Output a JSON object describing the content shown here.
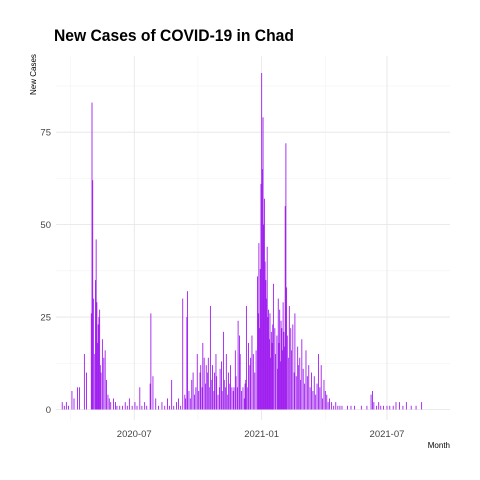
{
  "chart_data": {
    "type": "bar",
    "title": "New Cases of COVID-19 in Chad",
    "xlabel": "Month",
    "ylabel": "New Cases",
    "bar_color": "#A020F0",
    "grid": true,
    "legend": "none",
    "xlim": [
      "2020-03-10",
      "2021-09-30"
    ],
    "ylim": [
      0,
      91
    ],
    "x_ticks": [
      {
        "date": "2020-07-01",
        "label": "2020-07"
      },
      {
        "date": "2021-01-01",
        "label": "2021-01"
      },
      {
        "date": "2021-07-01",
        "label": "2021-07"
      }
    ],
    "y_ticks": [
      0,
      25,
      50,
      75
    ],
    "series": [
      {
        "points": [
          [
            "2020-03-19",
            2
          ],
          [
            "2020-03-22",
            1
          ],
          [
            "2020-03-25",
            2
          ],
          [
            "2020-03-28",
            1
          ],
          [
            "2020-04-02",
            5
          ],
          [
            "2020-04-05",
            3
          ],
          [
            "2020-04-10",
            6
          ],
          [
            "2020-04-13",
            6
          ],
          [
            "2020-04-20",
            15
          ],
          [
            "2020-04-23",
            10
          ],
          [
            "2020-04-30",
            26
          ],
          [
            "2020-05-01",
            83
          ],
          [
            "2020-05-02",
            62
          ],
          [
            "2020-05-03",
            30
          ],
          [
            "2020-05-05",
            15
          ],
          [
            "2020-05-06",
            35
          ],
          [
            "2020-05-07",
            46
          ],
          [
            "2020-05-08",
            29
          ],
          [
            "2020-05-09",
            18
          ],
          [
            "2020-05-10",
            23
          ],
          [
            "2020-05-11",
            25
          ],
          [
            "2020-05-12",
            27
          ],
          [
            "2020-05-13",
            12
          ],
          [
            "2020-05-14",
            10
          ],
          [
            "2020-05-16",
            19
          ],
          [
            "2020-05-18",
            14
          ],
          [
            "2020-05-20",
            16
          ],
          [
            "2020-05-22",
            8
          ],
          [
            "2020-05-24",
            4
          ],
          [
            "2020-05-26",
            3
          ],
          [
            "2020-05-28",
            2
          ],
          [
            "2020-06-01",
            3
          ],
          [
            "2020-06-04",
            2
          ],
          [
            "2020-06-06",
            1
          ],
          [
            "2020-06-10",
            1
          ],
          [
            "2020-06-14",
            1
          ],
          [
            "2020-06-18",
            2
          ],
          [
            "2020-06-21",
            1
          ],
          [
            "2020-06-24",
            3
          ],
          [
            "2020-06-28",
            1
          ],
          [
            "2020-07-02",
            2
          ],
          [
            "2020-07-05",
            1
          ],
          [
            "2020-07-09",
            6
          ],
          [
            "2020-07-12",
            1
          ],
          [
            "2020-07-16",
            2
          ],
          [
            "2020-07-19",
            1
          ],
          [
            "2020-07-24",
            7
          ],
          [
            "2020-07-25",
            26
          ],
          [
            "2020-07-28",
            9
          ],
          [
            "2020-08-01",
            3
          ],
          [
            "2020-08-05",
            1
          ],
          [
            "2020-08-10",
            2
          ],
          [
            "2020-08-14",
            1
          ],
          [
            "2020-08-18",
            3
          ],
          [
            "2020-08-21",
            1
          ],
          [
            "2020-08-24",
            8
          ],
          [
            "2020-08-27",
            1
          ],
          [
            "2020-08-31",
            2
          ],
          [
            "2020-09-03",
            3
          ],
          [
            "2020-09-06",
            1
          ],
          [
            "2020-09-09",
            30
          ],
          [
            "2020-09-12",
            4
          ],
          [
            "2020-09-13",
            3
          ],
          [
            "2020-09-15",
            25
          ],
          [
            "2020-09-16",
            32
          ],
          [
            "2020-09-18",
            5
          ],
          [
            "2020-09-20",
            3
          ],
          [
            "2020-09-22",
            8
          ],
          [
            "2020-09-24",
            10
          ],
          [
            "2020-09-26",
            4
          ],
          [
            "2020-09-28",
            6
          ],
          [
            "2020-09-30",
            15
          ],
          [
            "2020-10-02",
            5
          ],
          [
            "2020-10-04",
            10
          ],
          [
            "2020-10-05",
            12
          ],
          [
            "2020-10-07",
            6
          ],
          [
            "2020-10-08",
            18
          ],
          [
            "2020-10-10",
            14
          ],
          [
            "2020-10-12",
            7
          ],
          [
            "2020-10-13",
            12
          ],
          [
            "2020-10-15",
            10
          ],
          [
            "2020-10-16",
            14
          ],
          [
            "2020-10-18",
            6
          ],
          [
            "2020-10-19",
            28
          ],
          [
            "2020-10-21",
            8
          ],
          [
            "2020-10-22",
            12
          ],
          [
            "2020-10-24",
            5
          ],
          [
            "2020-10-25",
            10
          ],
          [
            "2020-10-27",
            15
          ],
          [
            "2020-10-28",
            9
          ],
          [
            "2020-10-30",
            4
          ],
          [
            "2020-11-01",
            6
          ],
          [
            "2020-11-02",
            11
          ],
          [
            "2020-11-04",
            13
          ],
          [
            "2020-11-05",
            5
          ],
          [
            "2020-11-07",
            21
          ],
          [
            "2020-11-08",
            8
          ],
          [
            "2020-11-10",
            6
          ],
          [
            "2020-11-11",
            15
          ],
          [
            "2020-11-13",
            4
          ],
          [
            "2020-11-14",
            10
          ],
          [
            "2020-11-16",
            7
          ],
          [
            "2020-11-17",
            12
          ],
          [
            "2020-11-19",
            6
          ],
          [
            "2020-11-21",
            5
          ],
          [
            "2020-11-22",
            6
          ],
          [
            "2020-11-24",
            16
          ],
          [
            "2020-11-25",
            9
          ],
          [
            "2020-11-27",
            6
          ],
          [
            "2020-11-28",
            24
          ],
          [
            "2020-11-30",
            20
          ],
          [
            "2020-12-01",
            15
          ],
          [
            "2020-12-03",
            5
          ],
          [
            "2020-12-05",
            6
          ],
          [
            "2020-12-07",
            3
          ],
          [
            "2020-12-08",
            7
          ],
          [
            "2020-12-09",
            8
          ],
          [
            "2020-12-10",
            28
          ],
          [
            "2020-12-12",
            6
          ],
          [
            "2020-12-13",
            18
          ],
          [
            "2020-12-15",
            12
          ],
          [
            "2020-12-16",
            14
          ],
          [
            "2020-12-18",
            20
          ],
          [
            "2020-12-20",
            15
          ],
          [
            "2020-12-22",
            10
          ],
          [
            "2020-12-24",
            16
          ],
          [
            "2020-12-26",
            36
          ],
          [
            "2020-12-27",
            26
          ],
          [
            "2020-12-28",
            45
          ],
          [
            "2020-12-29",
            22
          ],
          [
            "2020-12-30",
            38
          ],
          [
            "2020-12-31",
            61
          ],
          [
            "2021-01-01",
            91
          ],
          [
            "2021-01-02",
            65
          ],
          [
            "2021-01-03",
            79
          ],
          [
            "2021-01-04",
            50
          ],
          [
            "2021-01-05",
            57
          ],
          [
            "2021-01-06",
            40
          ],
          [
            "2021-01-07",
            35
          ],
          [
            "2021-01-08",
            30
          ],
          [
            "2021-01-09",
            44
          ],
          [
            "2021-01-10",
            25
          ],
          [
            "2021-01-11",
            27
          ],
          [
            "2021-01-12",
            19
          ],
          [
            "2021-01-13",
            26
          ],
          [
            "2021-01-14",
            14
          ],
          [
            "2021-01-15",
            21
          ],
          [
            "2021-01-16",
            18
          ],
          [
            "2021-01-17",
            23
          ],
          [
            "2021-01-18",
            34
          ],
          [
            "2021-01-20",
            22
          ],
          [
            "2021-01-21",
            15
          ],
          [
            "2021-01-23",
            20
          ],
          [
            "2021-01-24",
            11
          ],
          [
            "2021-01-25",
            30
          ],
          [
            "2021-01-26",
            18
          ],
          [
            "2021-01-27",
            27
          ],
          [
            "2021-01-28",
            13
          ],
          [
            "2021-01-29",
            24
          ],
          [
            "2021-01-30",
            22
          ],
          [
            "2021-01-31",
            16
          ],
          [
            "2021-02-01",
            29
          ],
          [
            "2021-02-02",
            21
          ],
          [
            "2021-02-03",
            17
          ],
          [
            "2021-02-04",
            55
          ],
          [
            "2021-02-05",
            72
          ],
          [
            "2021-02-06",
            33
          ],
          [
            "2021-02-07",
            20
          ],
          [
            "2021-02-09",
            14
          ],
          [
            "2021-02-10",
            28
          ],
          [
            "2021-02-12",
            22
          ],
          [
            "2021-02-13",
            16
          ],
          [
            "2021-02-15",
            23
          ],
          [
            "2021-02-17",
            10
          ],
          [
            "2021-02-18",
            26
          ],
          [
            "2021-02-20",
            9
          ],
          [
            "2021-02-22",
            17
          ],
          [
            "2021-02-23",
            12
          ],
          [
            "2021-02-25",
            14
          ],
          [
            "2021-02-26",
            8
          ],
          [
            "2021-02-28",
            19
          ],
          [
            "2021-03-02",
            11
          ],
          [
            "2021-03-04",
            7
          ],
          [
            "2021-03-06",
            16
          ],
          [
            "2021-03-08",
            9
          ],
          [
            "2021-03-10",
            12
          ],
          [
            "2021-03-12",
            6
          ],
          [
            "2021-03-14",
            10
          ],
          [
            "2021-03-16",
            5
          ],
          [
            "2021-03-18",
            9
          ],
          [
            "2021-03-20",
            4
          ],
          [
            "2021-03-22",
            7
          ],
          [
            "2021-03-24",
            15
          ],
          [
            "2021-03-26",
            6
          ],
          [
            "2021-03-28",
            12
          ],
          [
            "2021-03-30",
            3
          ],
          [
            "2021-04-01",
            8
          ],
          [
            "2021-04-03",
            5
          ],
          [
            "2021-04-05",
            4
          ],
          [
            "2021-04-07",
            2
          ],
          [
            "2021-04-09",
            3
          ],
          [
            "2021-04-12",
            2
          ],
          [
            "2021-04-15",
            1
          ],
          [
            "2021-04-18",
            2
          ],
          [
            "2021-04-21",
            1
          ],
          [
            "2021-04-24",
            1
          ],
          [
            "2021-04-27",
            1
          ],
          [
            "2021-05-05",
            1
          ],
          [
            "2021-05-10",
            1
          ],
          [
            "2021-05-15",
            1
          ],
          [
            "2021-05-25",
            1
          ],
          [
            "2021-06-02",
            1
          ],
          [
            "2021-06-08",
            4
          ],
          [
            "2021-06-10",
            5
          ],
          [
            "2021-06-12",
            2
          ],
          [
            "2021-06-16",
            1
          ],
          [
            "2021-06-19",
            2
          ],
          [
            "2021-06-22",
            1
          ],
          [
            "2021-06-26",
            1
          ],
          [
            "2021-07-01",
            1
          ],
          [
            "2021-07-05",
            1
          ],
          [
            "2021-07-10",
            1
          ],
          [
            "2021-07-14",
            2
          ],
          [
            "2021-07-19",
            2
          ],
          [
            "2021-07-24",
            1
          ],
          [
            "2021-07-29",
            2
          ],
          [
            "2021-08-05",
            1
          ],
          [
            "2021-08-12",
            1
          ],
          [
            "2021-08-20",
            2
          ]
        ]
      }
    ]
  }
}
